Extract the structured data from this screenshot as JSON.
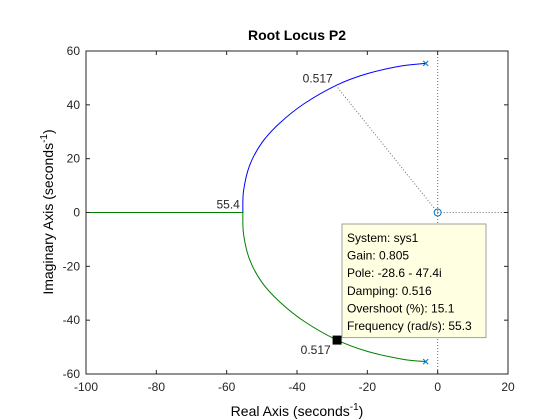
{
  "chart_data": {
    "type": "line",
    "title": "Root Locus P2",
    "xlabel": "Real Axis (seconds",
    "xlabel_sup": "-1",
    "xlabel_close": ")",
    "ylabel": "Imaginary Axis (seconds",
    "ylabel_sup": "-1",
    "ylabel_close": ")",
    "xlim": [
      -100,
      20
    ],
    "ylim": [
      -60,
      60
    ],
    "xticks": [
      -100,
      -80,
      -60,
      -40,
      -20,
      0,
      20
    ],
    "yticks": [
      -60,
      -40,
      -20,
      0,
      20,
      40,
      60
    ],
    "xtick_labels": [
      "-100",
      "-80",
      "-60",
      "-40",
      "-20",
      "0",
      "20"
    ],
    "ytick_labels": [
      "-60",
      "-40",
      "-20",
      "0",
      "20",
      "40",
      "60"
    ],
    "grid": false,
    "series": [
      {
        "color": "#0000ff",
        "points": [
          [
            -3.4,
            55.4
          ],
          [
            -10,
            54.5
          ],
          [
            -20,
            51.6
          ],
          [
            -28.6,
            47.4
          ],
          [
            -38,
            40.4
          ],
          [
            -45,
            33.1
          ],
          [
            -50,
            25.9
          ],
          [
            -53.5,
            17.4
          ],
          [
            -55.2,
            8
          ],
          [
            -55.4,
            0
          ],
          [
            -100,
            0
          ]
        ]
      },
      {
        "color": "#007f00",
        "points": [
          [
            -3.4,
            -55.4
          ],
          [
            -10,
            -54.5
          ],
          [
            -20,
            -51.6
          ],
          [
            -28.6,
            -47.4
          ],
          [
            -38,
            -40.4
          ],
          [
            -45,
            -33.1
          ],
          [
            -50,
            -25.9
          ],
          [
            -53.5,
            -17.4
          ],
          [
            -55.2,
            -8
          ],
          [
            -55.4,
            0
          ],
          [
            -100,
            0
          ]
        ]
      }
    ],
    "poles": [
      [
        -3.4,
        55.4
      ],
      [
        -3.4,
        -55.4
      ]
    ],
    "zeros": [
      [
        0,
        0
      ]
    ],
    "selected_point": [
      -28.6,
      -47.4
    ],
    "annotations": [
      {
        "text": "0.517",
        "x": -29,
        "y": 48
      },
      {
        "text": "55.4",
        "x": -55.4,
        "y": 0
      },
      {
        "text": "0.517",
        "x": -29,
        "y": -47.4
      }
    ],
    "datatip": {
      "lines": [
        "System: sys1",
        "Gain: 0.805",
        "Pole: -28.6 - 47.4i",
        "Damping: 0.516",
        "Overshoot (%): 15.1",
        "Frequency (rad/s): 55.3"
      ],
      "background": "#ffffe1"
    }
  }
}
